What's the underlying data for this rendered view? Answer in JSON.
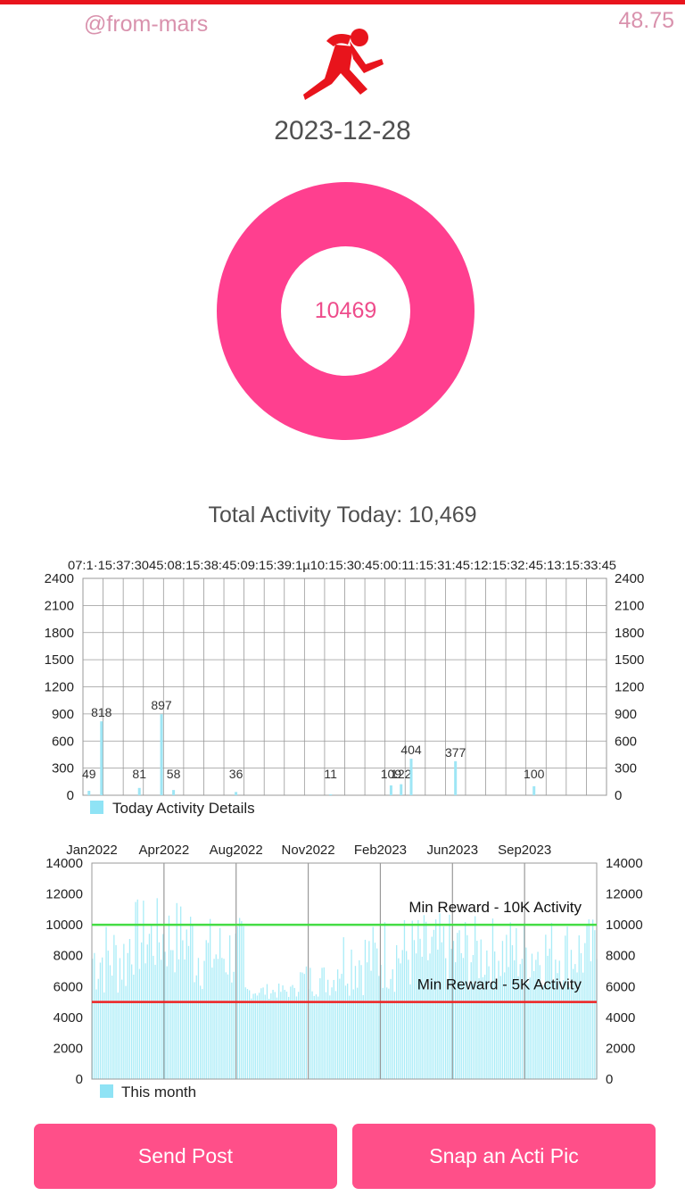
{
  "header": {
    "username": "@from-mars",
    "balance": "48.75",
    "logo_icon": "running-person-icon",
    "date": "2023-12-28"
  },
  "ring": {
    "value": "10469",
    "color": "#ff3f8f"
  },
  "summary": {
    "total_label": "Total Activity Today: 10,469"
  },
  "buttons": {
    "send_post": "Send Post",
    "snap_pic": "Snap an Acti Pic"
  },
  "chart_data": [
    {
      "type": "bar",
      "legend": "Today Activity Details",
      "top_labels_overlapping": "07:1·15:37:3045:08:15:38:45:09:15:39:1µ10:15:30:45:00:11:15:31:45:12:15:32:45:13:15:33:45",
      "ylim": [
        0,
        2400
      ],
      "yticks": [
        "0",
        "300",
        "600",
        "900",
        "1200",
        "1500",
        "1800",
        "2100",
        "2400"
      ],
      "bar_color": "#9ee6f5",
      "bars": [
        {
          "x": 0.3,
          "value": 49,
          "label": "49"
        },
        {
          "x": 0.92,
          "value": 818,
          "label": "818"
        },
        {
          "x": 2.8,
          "value": 81,
          "label": "81"
        },
        {
          "x": 3.9,
          "value": 897,
          "label": "897"
        },
        {
          "x": 4.5,
          "value": 58,
          "label": "58"
        },
        {
          "x": 7.6,
          "value": 36,
          "label": "36"
        },
        {
          "x": 12.3,
          "value": 11,
          "label": "11"
        },
        {
          "x": 15.3,
          "value": 109,
          "label": "109"
        },
        {
          "x": 15.8,
          "value": 122,
          "label": "122"
        },
        {
          "x": 16.3,
          "value": 404,
          "label": "404"
        },
        {
          "x": 18.5,
          "value": 377,
          "label": "377"
        },
        {
          "x": 22.4,
          "value": 100,
          "label": "100"
        }
      ],
      "x_count": 26
    },
    {
      "type": "bar",
      "legend": "This month",
      "categories": [
        "Jan2022",
        "Apr2022",
        "Aug2022",
        "Nov2022",
        "Feb2023",
        "Jun2023",
        "Sep2023"
      ],
      "ylim": [
        0,
        14000
      ],
      "yticks": [
        "0",
        "2000",
        "4000",
        "6000",
        "8000",
        "10000",
        "12000",
        "14000"
      ],
      "bar_color": "#a9ecf7",
      "reference_lines": [
        {
          "value": 10000,
          "label": "Min Reward - 10K Activity",
          "color": "#44dd44"
        },
        {
          "value": 5000,
          "label": "Min Reward - 5K Activity",
          "color": "#ee2222"
        }
      ],
      "segments": [
        {
          "from": 0,
          "to": 0.07,
          "low": 5200,
          "high": 10500
        },
        {
          "from": 0.07,
          "to": 0.2,
          "low": 6500,
          "high": 11800
        },
        {
          "from": 0.2,
          "to": 0.3,
          "low": 5600,
          "high": 10600
        },
        {
          "from": 0.3,
          "to": 0.4,
          "low": 5200,
          "high": 6200
        },
        {
          "from": 0.4,
          "to": 0.48,
          "low": 5300,
          "high": 7600
        },
        {
          "from": 0.48,
          "to": 0.57,
          "low": 5400,
          "high": 10200
        },
        {
          "from": 0.57,
          "to": 0.75,
          "low": 5500,
          "high": 10800
        },
        {
          "from": 0.75,
          "to": 1.0,
          "low": 5800,
          "high": 10600
        }
      ]
    }
  ]
}
